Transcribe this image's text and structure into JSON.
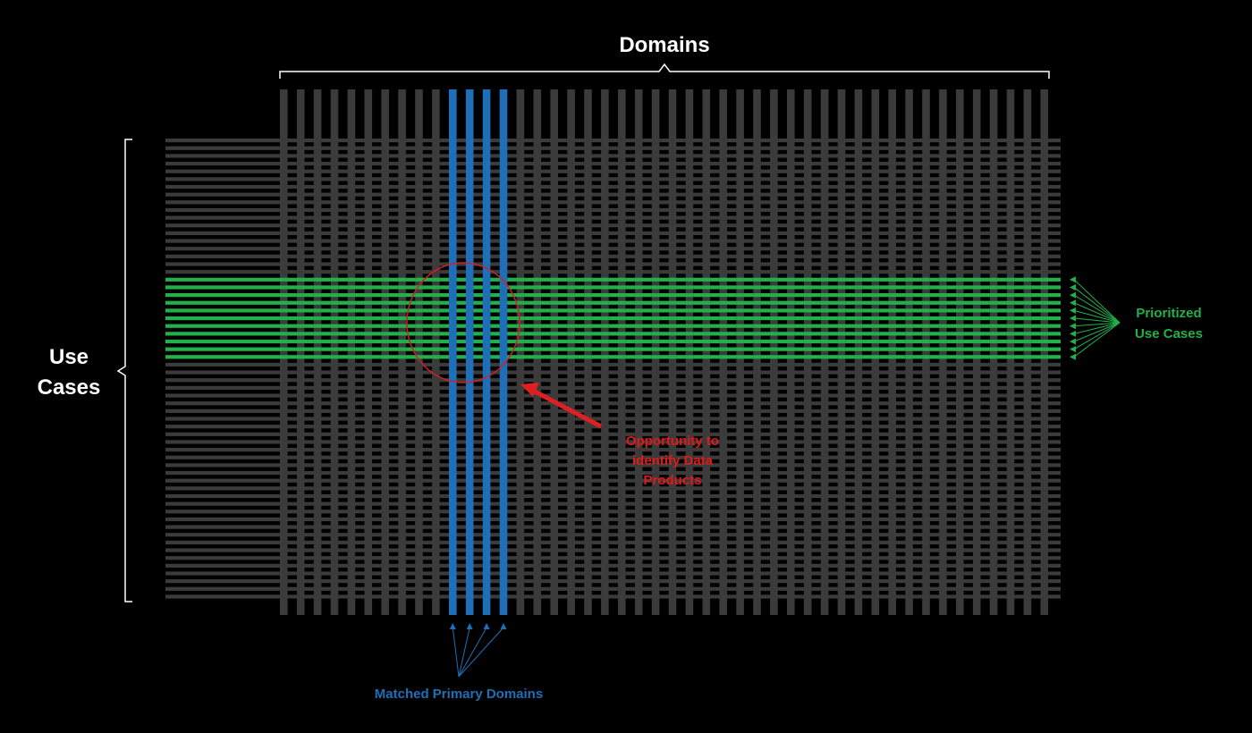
{
  "labels": {
    "domains": "Domains",
    "use_cases_line1": "Use",
    "use_cases_line2": "Cases",
    "prioritized_line1": "Prioritized",
    "prioritized_line2": "Use Cases",
    "opportunity_line1": "Opportunity to",
    "opportunity_line2": "identify Data",
    "opportunity_line3": "Products",
    "matched": "Matched Primary Domains"
  },
  "grid": {
    "domain_count": 46,
    "use_case_count": 60,
    "matched_domains": [
      10,
      11,
      12,
      13
    ],
    "prioritized_use_cases": [
      18,
      19,
      20,
      21,
      22,
      23,
      24,
      25,
      26,
      27,
      28
    ]
  },
  "colors": {
    "background": "#000000",
    "gray": "#3b3b3b",
    "blue": "#1f6fb8",
    "green": "#22b04b",
    "red": "#d42020",
    "white": "#ffffff"
  }
}
